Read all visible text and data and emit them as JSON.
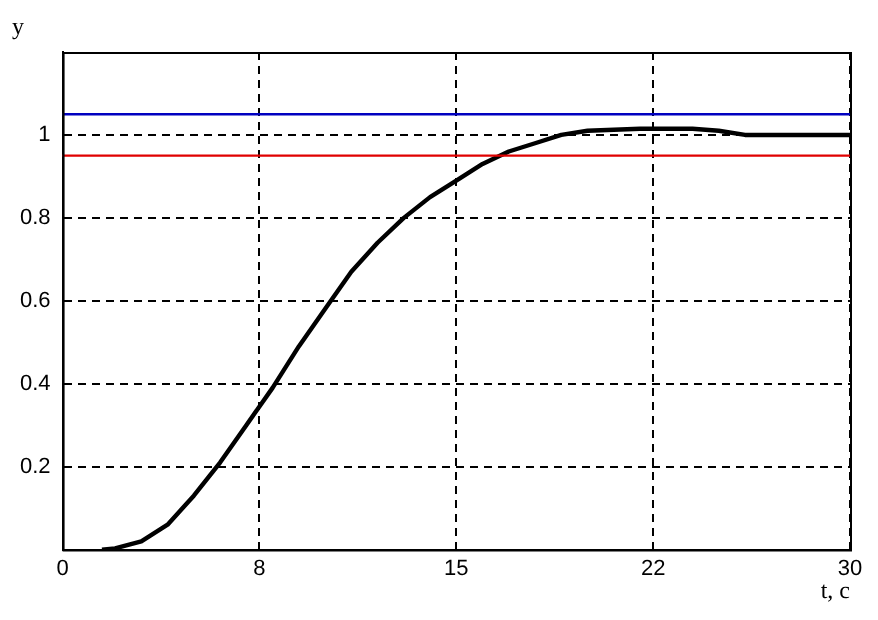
{
  "chart_data": {
    "type": "line",
    "xlabel": "t, c",
    "ylabel": "y",
    "x": [
      1.5,
      2,
      3,
      4,
      5,
      6,
      7,
      8,
      9,
      10,
      11,
      12,
      13,
      14,
      15,
      16,
      17,
      18,
      19,
      20,
      22,
      24,
      25,
      26,
      28,
      30
    ],
    "series": [
      {
        "color": "#000000",
        "values": [
          0,
          0.003,
          0.02,
          0.06,
          0.13,
          0.21,
          0.3,
          0.39,
          0.49,
          0.58,
          0.67,
          0.74,
          0.8,
          0.85,
          0.89,
          0.93,
          0.96,
          0.98,
          1.0,
          1.01,
          1.015,
          1.015,
          1.01,
          1.0,
          1.0,
          1.0
        ]
      }
    ],
    "xlim": [
      0,
      30
    ],
    "xticks": [
      0,
      {
        "value": 7.5,
        "label": "8"
      },
      15,
      {
        "value": 22.5,
        "label": "22"
      },
      30
    ],
    "ylim": [
      0,
      1.2
    ],
    "yticks": [
      0.2,
      0.4,
      0.6,
      0.8,
      1
    ],
    "ref_lines": [
      {
        "axis": "y",
        "value": 1.05,
        "color": "#0000c0"
      },
      {
        "axis": "y",
        "value": 0.95,
        "color": "#e00000"
      }
    ],
    "grid": true,
    "line_style": "solid",
    "marker": "none",
    "legend": false
  }
}
